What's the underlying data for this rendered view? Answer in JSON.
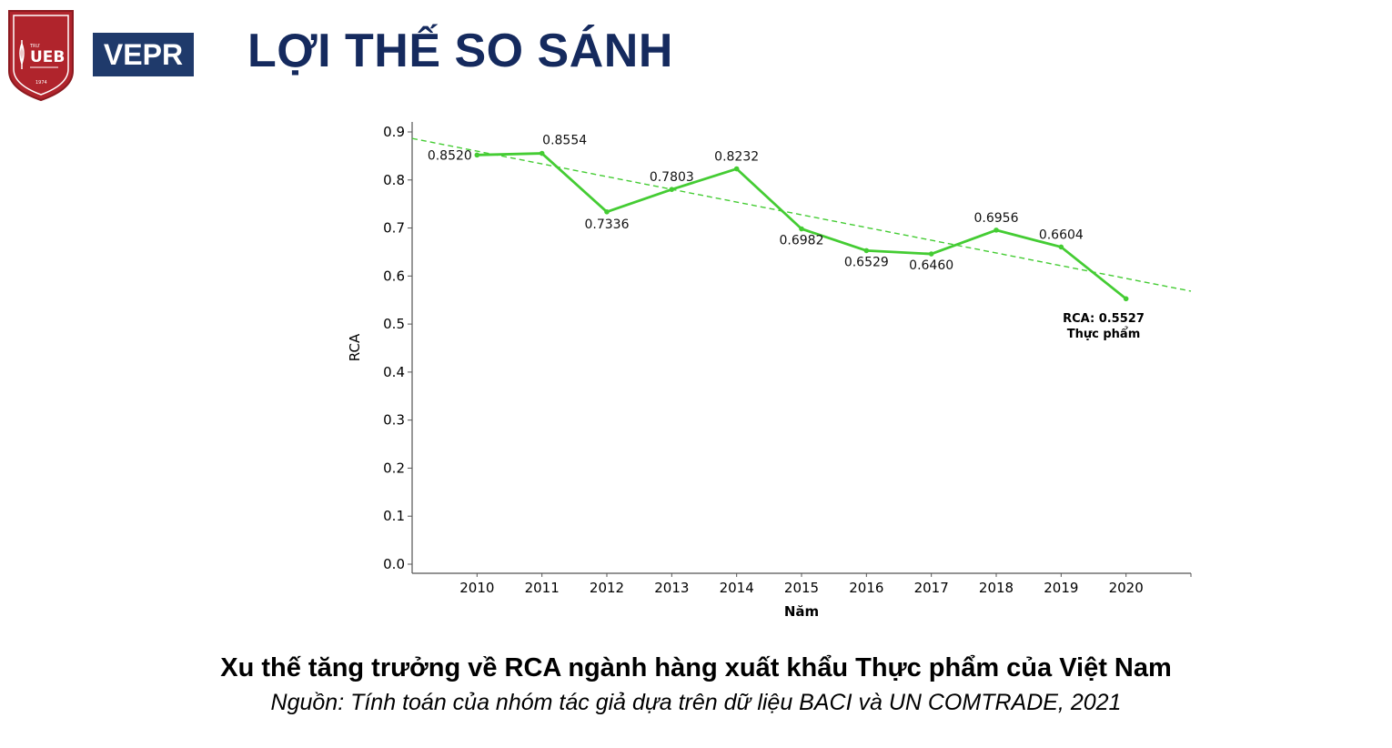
{
  "header": {
    "title": "LỢI THẾ SO SÁNH",
    "logo_ueb": {
      "text": "UEB",
      "small_text": "TRƯ",
      "year": "1974"
    },
    "logo_vepr": {
      "text": "VEPR"
    }
  },
  "chart_data": {
    "type": "line",
    "x": [
      2010,
      2011,
      2012,
      2013,
      2014,
      2015,
      2016,
      2017,
      2018,
      2019,
      2020
    ],
    "series": [
      {
        "values": [
          0.852,
          0.8554,
          0.7336,
          0.7803,
          0.8232,
          0.6982,
          0.6529,
          0.646,
          0.6956,
          0.6604,
          0.5527
        ],
        "labels": [
          "0.8520",
          "0.8554",
          "0.7336",
          "0.7803",
          "0.8232",
          "0.6982",
          "0.6529",
          "0.6460",
          "0.6956",
          "0.6604",
          ""
        ],
        "color": "#44cc33"
      }
    ],
    "trendline": {
      "start": [
        2009,
        0.8865
      ],
      "end": [
        2021,
        0.5685
      ],
      "style": "dashed",
      "color": "#44cc33"
    },
    "end_annotation": {
      "line1": "RCA: 0.5527",
      "line2": "Thực phẩm"
    },
    "xlabel": "Năm",
    "ylabel": "RCA",
    "ylim": [
      0.0,
      0.9
    ],
    "yticks": [
      "0.0",
      "0.1",
      "0.2",
      "0.3",
      "0.4",
      "0.5",
      "0.6",
      "0.7",
      "0.8",
      "0.9"
    ],
    "xlim": [
      2009,
      2021
    ],
    "grid": false
  },
  "caption": "Xu thế tăng trưởng về RCA ngành hàng xuất khẩu Thực phẩm của Việt Nam",
  "source": "Nguồn: Tính toán của nhóm tác giả dựa trên dữ liệu BACI và UN COMTRADE, 2021"
}
